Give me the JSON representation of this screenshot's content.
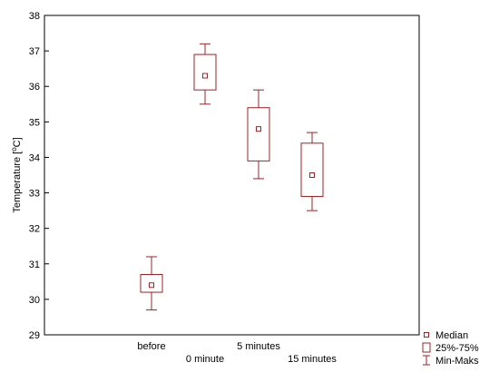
{
  "chart_data": {
    "type": "box",
    "ylabel_main": "Temperature [",
    "ylabel_sup": "o",
    "ylabel_tail": "C]",
    "ylim": [
      29,
      38
    ],
    "yticks": [
      "29",
      "30",
      "31",
      "32",
      "33",
      "34",
      "35",
      "36",
      "37",
      "38"
    ],
    "grid": false,
    "legend_position": "bottom-right",
    "color": "#9b2428",
    "categories": [
      "before",
      "0 minute",
      "5 minutes",
      "15 minutes"
    ],
    "boxes": [
      {
        "label": "before",
        "min": 29.7,
        "q1": 30.2,
        "median": 30.4,
        "q3": 30.7,
        "max": 31.2
      },
      {
        "label": "0 minute",
        "min": 35.5,
        "q1": 35.9,
        "median": 36.3,
        "q3": 36.9,
        "max": 37.2
      },
      {
        "label": "5 minutes",
        "min": 33.4,
        "q1": 33.9,
        "median": 34.8,
        "q3": 35.4,
        "max": 35.9
      },
      {
        "label": "15 minutes",
        "min": 32.5,
        "q1": 32.9,
        "median": 33.5,
        "q3": 34.4,
        "max": 34.7
      }
    ],
    "legend": [
      {
        "marker": "median",
        "label": "Median"
      },
      {
        "marker": "box",
        "label": "25%-75%"
      },
      {
        "marker": "whisker",
        "label": "Min-Maks"
      }
    ]
  }
}
